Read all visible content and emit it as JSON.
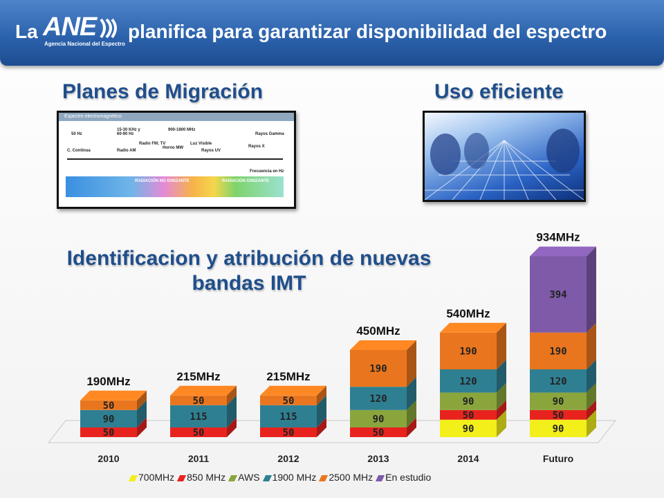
{
  "header": {
    "prefix": "La",
    "logo_text": "ANE",
    "logo_sub": "Agencia Nacional del Espectro",
    "title_rest": "planifica para garantizar disponibilidad del espectro"
  },
  "sections": {
    "migracion_title": "Planes de Migración",
    "uso_title": "Uso eficiente",
    "ident_title_line1": "Identificacion y atribución de nuevas",
    "ident_title_line2": "bandas IMT"
  },
  "spectrum_image": {
    "header": "Espectro electromagnético",
    "labels": [
      "50 Hz",
      "15-30 KHz y 60-90 Hz",
      "900-1800 MHz",
      "Luz Visible",
      "Rayos Gamma",
      "C. Continua",
      "Radio AM",
      "Radio FM; TV",
      "Horno MW",
      "Rayos UV",
      "Rayos X",
      "RADIACIÓN NO IONIZANTE",
      "RADIACIÓN IONIZANTE",
      "Frecuencia en Hz"
    ]
  },
  "colors": {
    "700MHz": "#f2ef1b",
    "850 MHz": "#e8231e",
    "AWS": "#8aa53c",
    "1900 MHz": "#2f7f92",
    "2500 MHz": "#e9761e",
    "En estudio": "#7e5aa8",
    "header": "#2c63ad",
    "title": "#1f4e8c"
  },
  "chart_data": {
    "type": "bar",
    "stacked": true,
    "categories": [
      "2010",
      "2011",
      "2012",
      "2013",
      "2014",
      "Futuro"
    ],
    "totals": [
      "190MHz",
      "215MHz",
      "215MHz",
      "450MHz",
      "540MHz",
      "934MHz"
    ],
    "series": [
      {
        "name": "700MHz",
        "values": [
          0,
          0,
          0,
          0,
          90,
          90
        ]
      },
      {
        "name": "850 MHz",
        "values": [
          50,
          50,
          50,
          50,
          50,
          50
        ]
      },
      {
        "name": "AWS",
        "values": [
          0,
          0,
          0,
          90,
          90,
          90
        ]
      },
      {
        "name": "1900 MHz",
        "values": [
          90,
          115,
          115,
          120,
          120,
          120
        ]
      },
      {
        "name": "2500 MHz",
        "values": [
          50,
          50,
          50,
          190,
          190,
          190
        ]
      },
      {
        "name": "En estudio",
        "values": [
          0,
          0,
          0,
          0,
          0,
          394
        ]
      }
    ],
    "legend_position": "bottom"
  }
}
